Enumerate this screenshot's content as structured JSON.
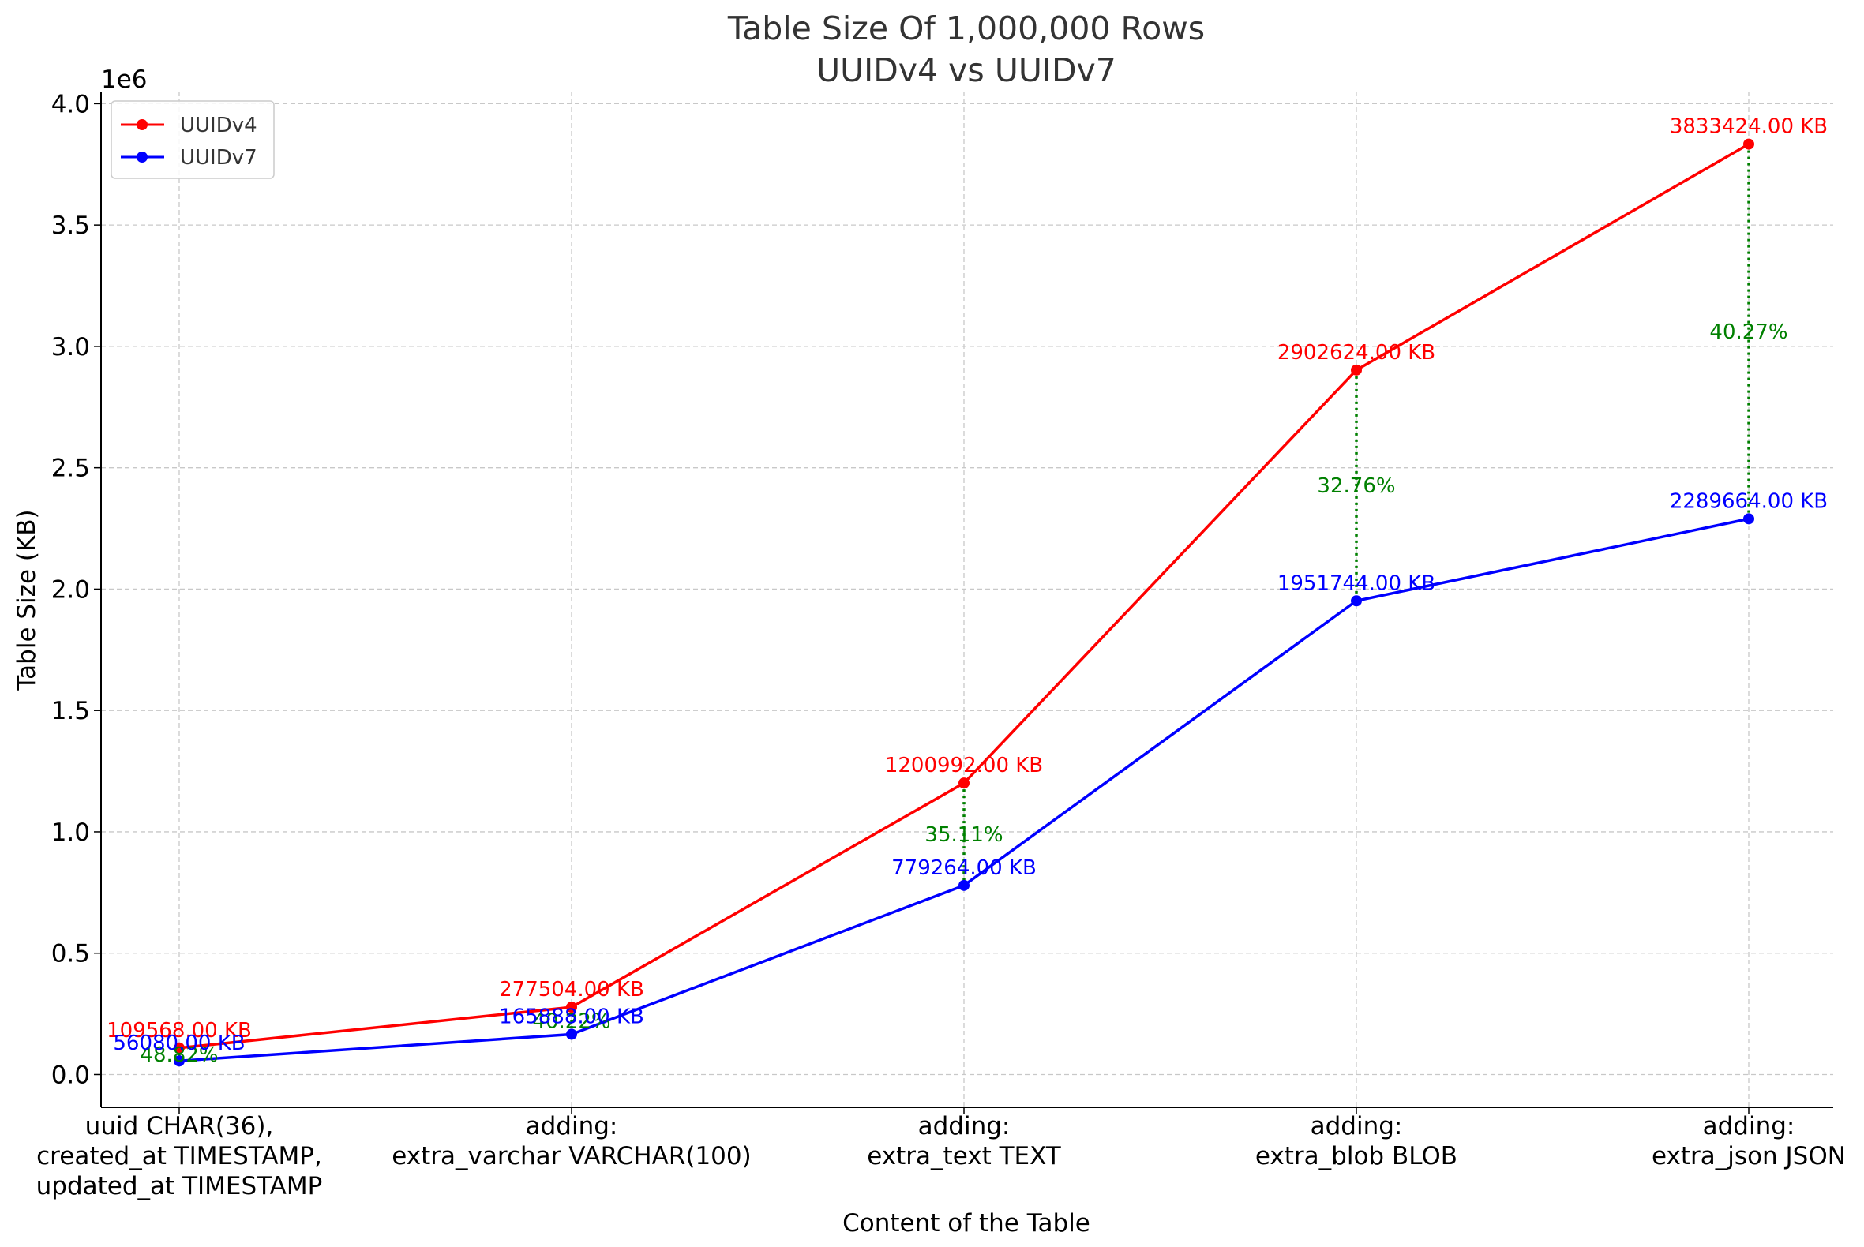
{
  "chart_data": {
    "type": "line",
    "title": "Table Size Of 1,000,000 Rows",
    "subtitle": "UUIDv4 vs UUIDv7",
    "xlabel": "Content of the Table",
    "ylabel": "Table Size (KB)",
    "y_offset_label": "1e6",
    "ylim": [
      -135000,
      4050000
    ],
    "yticks": [
      0,
      500000,
      1000000,
      1500000,
      2000000,
      2500000,
      3000000,
      3500000,
      4000000
    ],
    "ytick_labels": [
      "0.0",
      "0.5",
      "1.0",
      "1.5",
      "2.0",
      "2.5",
      "3.0",
      "3.5",
      "4.0"
    ],
    "grid": true,
    "legend_position": "top-left",
    "categories": [
      [
        "uuid CHAR(36),",
        "created_at TIMESTAMP,",
        "updated_at TIMESTAMP"
      ],
      [
        "adding:",
        "extra_varchar VARCHAR(100)"
      ],
      [
        "adding:",
        "extra_text TEXT"
      ],
      [
        "adding:",
        "extra_blob BLOB"
      ],
      [
        "adding:",
        "extra_json JSON"
      ]
    ],
    "series": [
      {
        "name": "UUIDv4",
        "color": "#ff0000",
        "values": [
          109568,
          277504,
          1200992,
          2902624,
          3833424
        ],
        "labels": [
          "109568.00 KB",
          "277504.00 KB",
          "1200992.00 KB",
          "2902624.00 KB",
          "3833424.00 KB"
        ]
      },
      {
        "name": "UUIDv7",
        "color": "#0000ff",
        "values": [
          56080,
          165888,
          779264,
          1951744,
          2289664
        ],
        "labels": [
          "56080.00 KB",
          "165888.00 KB",
          "779264.00 KB",
          "1951744.00 KB",
          "2289664.00 KB"
        ]
      }
    ],
    "differences": {
      "color": "#008000",
      "labels": [
        "48.82%",
        "40.22%",
        "35.11%",
        "32.76%",
        "40.27%"
      ]
    }
  }
}
